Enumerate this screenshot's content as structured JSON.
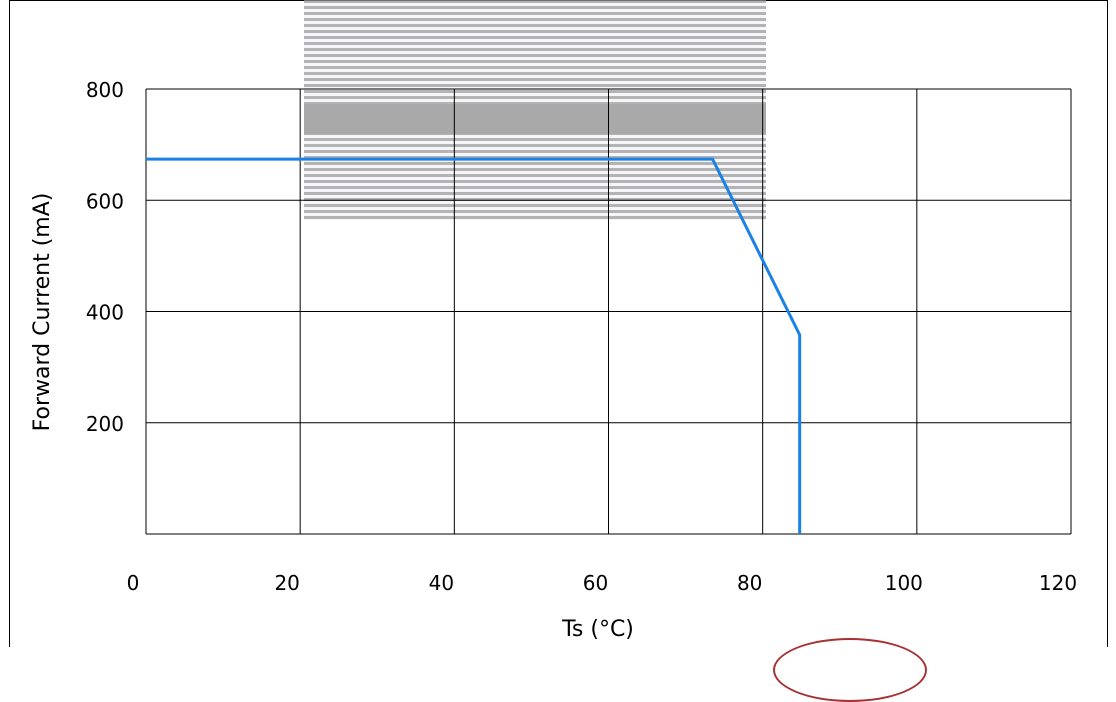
{
  "chart_data": {
    "type": "line",
    "title": "",
    "xlabel": "Ts (°C)",
    "ylabel": "Forward Current (mA)",
    "xlim": [
      0,
      120
    ],
    "ylim": [
      0,
      800
    ],
    "x_ticks": [
      0,
      20,
      40,
      60,
      80,
      100,
      120
    ],
    "y_ticks": [
      200,
      400,
      600,
      800
    ],
    "x_tick_labels": [
      "0",
      "20",
      "40",
      "60",
      "80",
      "100",
      "120"
    ],
    "y_tick_labels": [
      "200",
      "400",
      "600",
      "800"
    ],
    "x_grid": [
      20,
      40,
      60,
      80,
      100,
      120
    ],
    "y_grid": [
      200,
      400,
      600,
      800
    ],
    "grid": true,
    "series": [
      {
        "color": "#1a82e6",
        "x": [
          0,
          73.5,
          84.8,
          84.8
        ],
        "y": [
          674,
          674,
          358,
          0
        ]
      }
    ]
  }
}
